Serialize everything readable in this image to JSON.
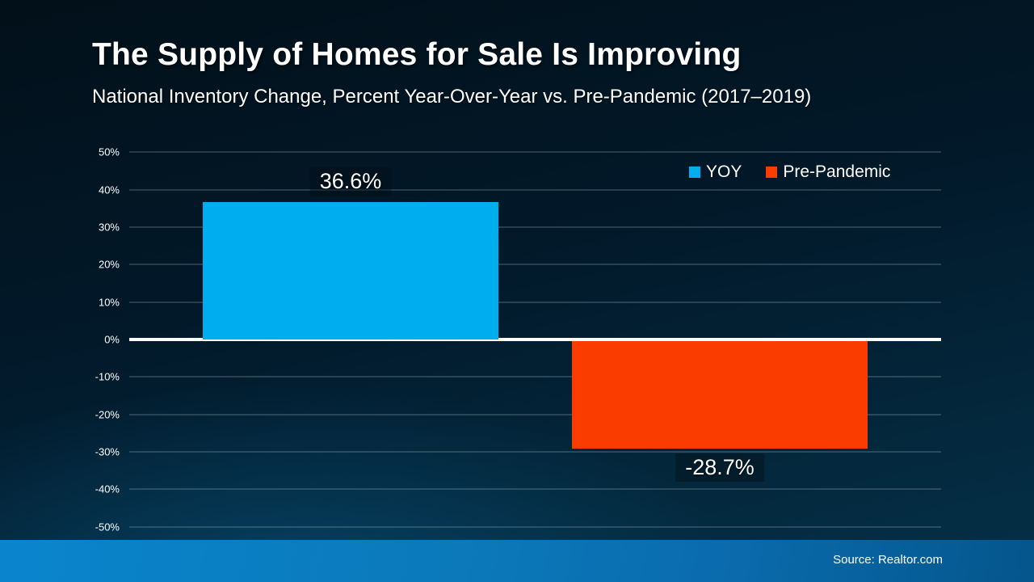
{
  "slide": {
    "title": "The Supply of Homes for Sale Is Improving",
    "subtitle": "National Inventory Change, Percent Year-Over-Year vs. Pre-Pandemic (2017–2019)",
    "source": "Source: Realtor.com"
  },
  "colors": {
    "yoy_bar": "#00AEEF",
    "pre_pandemic_bar": "#FB3C00",
    "zero_line": "#FFFFFF",
    "gridline": "rgba(186,204,210,0.42)",
    "background_dark": "#021019",
    "footer_blue_left": "#0A85CD",
    "footer_blue_right": "#04568C"
  },
  "chart_data": {
    "type": "bar",
    "title": "The Supply of Homes for Sale Is Improving",
    "subtitle": "National Inventory Change, Percent Year-Over-Year vs. Pre-Pandemic (2017–2019)",
    "categories": [
      "YOY",
      "Pre-Pandemic"
    ],
    "series": [
      {
        "name": "YOY",
        "value": 36.6,
        "value_label": "36.6%",
        "color": "#00AEEF"
      },
      {
        "name": "Pre-Pandemic",
        "value": -28.7,
        "value_label": "-28.7%",
        "color": "#FB3C00"
      }
    ],
    "xlabel": "",
    "ylabel": "",
    "ylim": [
      -50,
      50
    ],
    "y_ticks": [
      {
        "value": 50,
        "label": "50%"
      },
      {
        "value": 40,
        "label": "40%"
      },
      {
        "value": 30,
        "label": "30%"
      },
      {
        "value": 20,
        "label": "20%"
      },
      {
        "value": 10,
        "label": "10%"
      },
      {
        "value": 0,
        "label": "0%"
      },
      {
        "value": -10,
        "label": "-10%"
      },
      {
        "value": -20,
        "label": "-20%"
      },
      {
        "value": -30,
        "label": "-30%"
      },
      {
        "value": -40,
        "label": "-40%"
      },
      {
        "value": -50,
        "label": "-50%"
      }
    ],
    "grid": true,
    "legend_position": "top-right",
    "legend": [
      {
        "label": "YOY",
        "color": "#00AEEF"
      },
      {
        "label": "Pre-Pandemic",
        "color": "#FB3C00"
      }
    ]
  }
}
